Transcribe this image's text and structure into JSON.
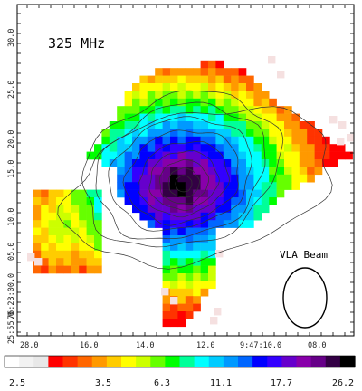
{
  "chart_data": {
    "type": "heatmap",
    "title": "325 MHz",
    "beam_label": "VLA Beam",
    "x_ticks": [
      "28.0",
      "16.0",
      "14.0",
      "12.0",
      "9:47:10.0",
      "08.0"
    ],
    "y_ticks": [
      "30.0",
      "25.0",
      "20.0",
      "15.0",
      "10.0",
      "05.0",
      "76:23:00.0",
      "25:55.0"
    ],
    "colorbar": {
      "ticks": [
        "2.5",
        "3.5",
        "6.3",
        "11.1",
        "17.7",
        "26.2"
      ],
      "colors": [
        "#ffffff",
        "#f2f2f2",
        "#e8e8e8",
        "#ff0000",
        "#ff3300",
        "#ff6600",
        "#ff9900",
        "#ffcc00",
        "#ffff00",
        "#ccff00",
        "#66ff00",
        "#00ff00",
        "#00ff99",
        "#00ffff",
        "#00ccff",
        "#0099ff",
        "#0066ff",
        "#0000ff",
        "#3300ff",
        "#6600cc",
        "#8800aa",
        "#660088",
        "#330044",
        "#000000"
      ]
    }
  }
}
